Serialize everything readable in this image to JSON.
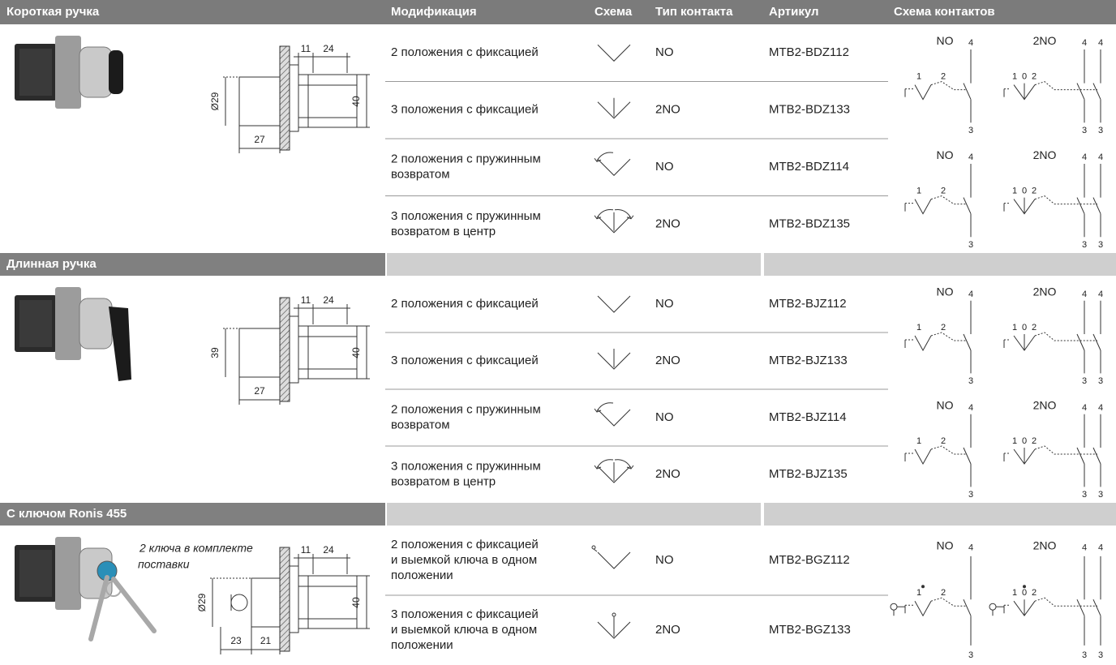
{
  "header": {
    "columns": [
      "Модификация",
      "Схема",
      "Тип контакта",
      "Артикул",
      "Схема контактов"
    ]
  },
  "sections": [
    {
      "title": "Короткая ручка",
      "dimensions": {
        "top": [
          "11",
          "24"
        ],
        "left": "Ø29",
        "right": "40",
        "bottom": [
          "27"
        ]
      },
      "rows": [
        {
          "modification": [
            "2 положения с фиксацией"
          ],
          "contact": "NO",
          "article": "MTB2-BDZ112"
        },
        {
          "modification": [
            "3 положения с фиксацией"
          ],
          "contact": "2NO",
          "article": "MTB2-BDZ133"
        },
        {
          "modification": [
            "2 положения с пружинным",
            "возвратом"
          ],
          "contact": "NO",
          "article": "MTB2-BDZ114"
        },
        {
          "modification": [
            "3 положения с пружинным",
            "возвратом в центр"
          ],
          "contact": "2NO",
          "article": "MTB2-BDZ135"
        }
      ],
      "diagrams": [
        {
          "single": {
            "title": "NO",
            "top": "4",
            "positions": [
              "1",
              "2"
            ],
            "bottom": "3"
          },
          "double": {
            "title": "2NO",
            "top": [
              "4",
              "4"
            ],
            "positions": [
              "1",
              "0",
              "2"
            ],
            "bottom": [
              "3",
              "3"
            ]
          }
        },
        {
          "single": {
            "title": "NO",
            "top": "4",
            "positions": [
              "1",
              "2"
            ],
            "bottom": "3"
          },
          "double": {
            "title": "2NO",
            "top": [
              "4",
              "4"
            ],
            "positions": [
              "1",
              "0",
              "2"
            ],
            "bottom": [
              "3",
              "3"
            ]
          }
        }
      ]
    },
    {
      "title": "Длинная ручка",
      "dimensions": {
        "top": [
          "11",
          "24"
        ],
        "left": "39",
        "right": "40",
        "bottom": [
          "27"
        ]
      },
      "rows": [
        {
          "modification": [
            "2 положения с фиксацией"
          ],
          "contact": "NO",
          "article": "MTB2-BJZ112"
        },
        {
          "modification": [
            "3 положения с фиксацией"
          ],
          "contact": "2NO",
          "article": "MTB2-BJZ133"
        },
        {
          "modification": [
            "2 положения с пружинным",
            "возвратом"
          ],
          "contact": "NO",
          "article": "MTB2-BJZ114"
        },
        {
          "modification": [
            "3 положения с пружинным",
            "возвратом в центр"
          ],
          "contact": "2NO",
          "article": "MTB2-BJZ135"
        }
      ],
      "diagrams": [
        {
          "single": {
            "title": "NO",
            "top": "4",
            "positions": [
              "1",
              "2"
            ],
            "bottom": "3"
          },
          "double": {
            "title": "2NO",
            "top": [
              "4",
              "4"
            ],
            "positions": [
              "1",
              "0",
              "2"
            ],
            "bottom": [
              "3",
              "3"
            ]
          }
        },
        {
          "single": {
            "title": "NO",
            "top": "4",
            "positions": [
              "1",
              "2"
            ],
            "bottom": "3"
          },
          "double": {
            "title": "2NO",
            "top": [
              "4",
              "4"
            ],
            "positions": [
              "1",
              "0",
              "2"
            ],
            "bottom": [
              "3",
              "3"
            ]
          }
        }
      ]
    },
    {
      "title": "С ключом Ronis 455",
      "note": [
        "2 ключа в комплекте",
        "поставки"
      ],
      "dimensions": {
        "top": [
          "11",
          "24"
        ],
        "left": "Ø29",
        "right": "40",
        "bottom": [
          "23",
          "21"
        ]
      },
      "rows": [
        {
          "modification": [
            "2 положения с фиксацией",
            "и выемкой ключа в одном",
            "положении"
          ],
          "contact": "NO",
          "article": "MTB2-BGZ112"
        },
        {
          "modification": [
            "3 положения с фиксацией",
            "и выемкой ключа в одном",
            "положении"
          ],
          "contact": "2NO",
          "article": "MTB2-BGZ133"
        }
      ],
      "diagrams": [
        {
          "single": {
            "title": "NO",
            "top": "4",
            "positions": [
              "1",
              "2"
            ],
            "bottom": "3"
          },
          "double": {
            "title": "2NO",
            "top": [
              "4",
              "4"
            ],
            "positions": [
              "1",
              "0",
              "2"
            ],
            "bottom": [
              "3",
              "3"
            ]
          }
        }
      ]
    }
  ]
}
